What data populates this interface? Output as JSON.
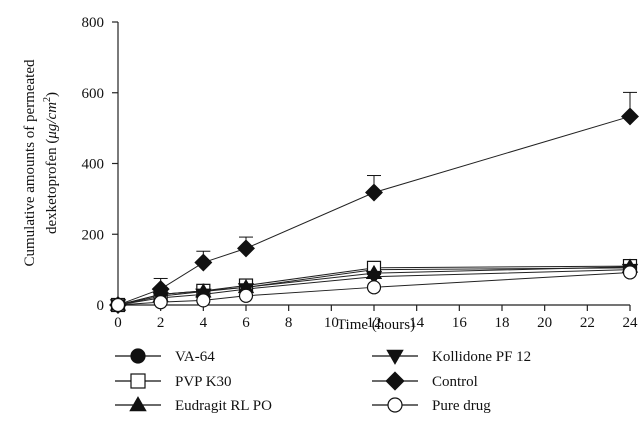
{
  "chart_data": {
    "type": "line",
    "title": "",
    "xlabel": "Time (hours)",
    "ylabel_line1": "Cumulative amounts of permeated",
    "ylabel_line2": "dexketoprofen (",
    "ylabel_unit": "μg/cm",
    "ylabel_sup": "2",
    "ylabel_close": ")",
    "xlim": [
      0,
      24
    ],
    "ylim": [
      0,
      800
    ],
    "xticks": [
      0,
      2,
      4,
      6,
      8,
      10,
      12,
      14,
      16,
      18,
      20,
      22,
      24
    ],
    "yticks": [
      0,
      200,
      400,
      600,
      800
    ],
    "grid": false,
    "legend_position": "bottom",
    "series": [
      {
        "name": "VA-64",
        "marker": "circle-filled",
        "x": [
          0,
          2,
          4,
          6,
          12,
          24
        ],
        "y": [
          0,
          30,
          40,
          50,
          100,
          105
        ],
        "err": [
          0,
          0,
          0,
          0,
          0,
          0
        ]
      },
      {
        "name": "PVP K30",
        "marker": "square-open",
        "x": [
          0,
          2,
          4,
          6,
          12,
          24
        ],
        "y": [
          0,
          30,
          40,
          55,
          105,
          110
        ],
        "err": [
          0,
          0,
          0,
          0,
          10,
          0
        ]
      },
      {
        "name": "Eudragit RL PO",
        "marker": "triangle-up-filled",
        "x": [
          0,
          2,
          4,
          6,
          12,
          24
        ],
        "y": [
          0,
          25,
          38,
          50,
          90,
          108
        ],
        "err": [
          0,
          0,
          0,
          0,
          0,
          0
        ]
      },
      {
        "name": "Kollidone PF 12",
        "marker": "triangle-down-filled",
        "x": [
          0,
          2,
          4,
          6,
          12,
          24
        ],
        "y": [
          0,
          20,
          30,
          45,
          80,
          100
        ],
        "err": [
          0,
          0,
          0,
          0,
          0,
          0
        ]
      },
      {
        "name": "Control",
        "marker": "diamond-filled",
        "x": [
          0,
          2,
          4,
          6,
          12,
          24
        ],
        "y": [
          0,
          45,
          120,
          160,
          318,
          533
        ],
        "err": [
          0,
          30,
          32,
          32,
          48,
          68
        ]
      },
      {
        "name": "Pure drug",
        "marker": "circle-open",
        "x": [
          0,
          2,
          4,
          6,
          12,
          24
        ],
        "y": [
          0,
          8,
          13,
          26,
          50,
          92
        ],
        "err": [
          0,
          0,
          0,
          0,
          0,
          0
        ]
      }
    ]
  }
}
